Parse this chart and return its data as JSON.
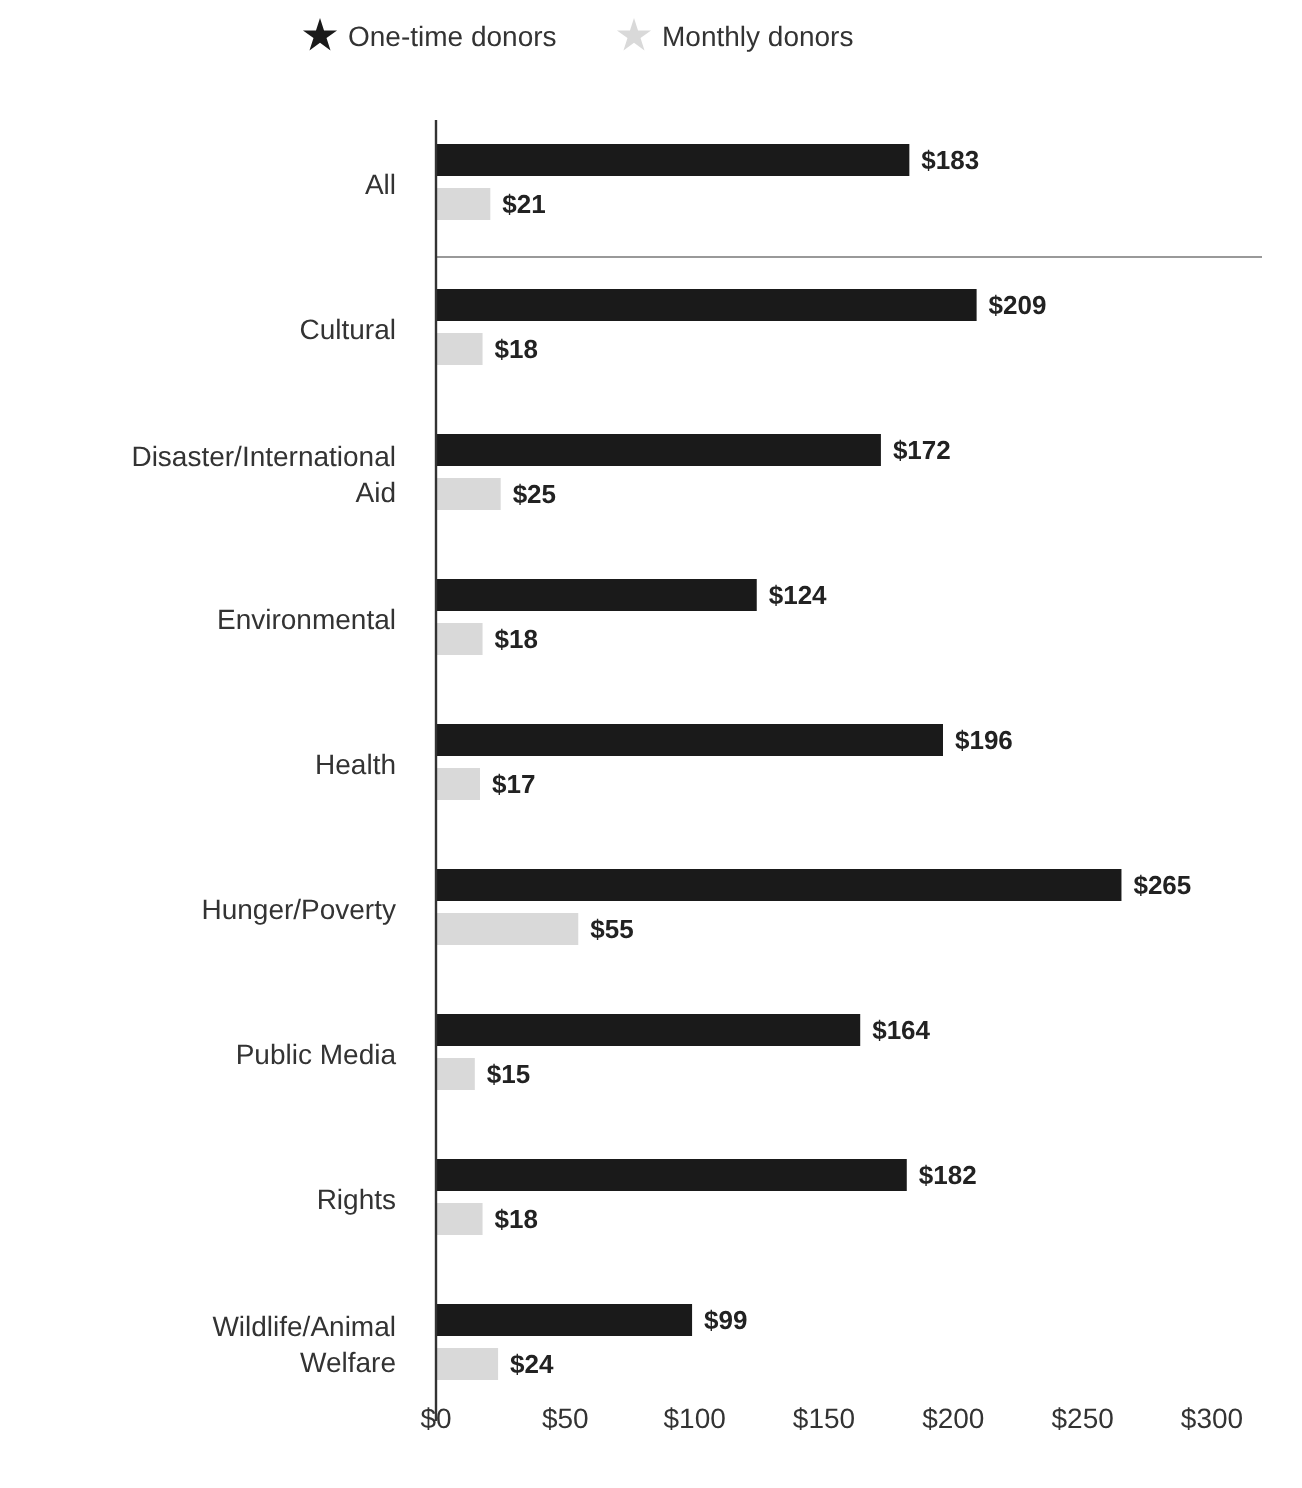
{
  "chart_data": {
    "type": "bar",
    "orientation": "horizontal",
    "legend": "top",
    "marker": "star",
    "categories": [
      "All",
      "Cultural",
      "Disaster/International Aid",
      "Environmental",
      "Health",
      "Hunger/Poverty",
      "Public Media",
      "Rights",
      "Wildlife/Animal Welfare"
    ],
    "series": [
      {
        "name": "One-time donors",
        "color": "#1a1a1a",
        "values": [
          183,
          209,
          172,
          124,
          196,
          265,
          164,
          182,
          99
        ],
        "value_labels": [
          "$183",
          "$209",
          "$172",
          "$124",
          "$196",
          "$265",
          "$164",
          "$182",
          "$99"
        ]
      },
      {
        "name": "Monthly donors",
        "color": "#d9d9d9",
        "values": [
          21,
          18,
          25,
          18,
          17,
          55,
          15,
          18,
          24
        ],
        "value_labels": [
          "$21",
          "$18",
          "$25",
          "$18",
          "$17",
          "$55",
          "$15",
          "$18",
          "$24"
        ]
      }
    ],
    "xlim": [
      0,
      300
    ],
    "xticks": [
      {
        "value": 0,
        "label": "$0"
      },
      {
        "value": 50,
        "label": "$50"
      },
      {
        "value": 100,
        "label": "$100"
      },
      {
        "value": 150,
        "label": "$150"
      },
      {
        "value": 200,
        "label": "$200"
      },
      {
        "value": 250,
        "label": "$250"
      },
      {
        "value": 300,
        "label": "$300"
      }
    ]
  }
}
